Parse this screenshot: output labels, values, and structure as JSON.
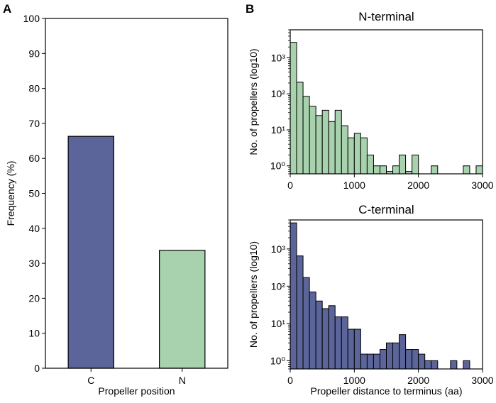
{
  "panel_labels": [
    "A",
    "B"
  ],
  "chart_data": [
    {
      "id": "A",
      "type": "bar",
      "title": "",
      "xlabel": "Propeller position",
      "ylabel": "Frequency (%)",
      "categories": [
        "C",
        "N"
      ],
      "values": [
        66.3,
        33.7
      ],
      "colors": [
        "#5b6599",
        "#a8d1ad"
      ],
      "ylim": [
        0,
        100
      ],
      "yticks": [
        0,
        10,
        20,
        30,
        40,
        50,
        60,
        70,
        80,
        90,
        100
      ]
    },
    {
      "id": "B-N",
      "type": "bar",
      "subtype": "histogram",
      "title": "N-terminal",
      "xlabel": "",
      "ylabel": "No. of propellers (log10)",
      "color": "#a8d1ad",
      "bin_width": 100,
      "xlim": [
        0,
        3000
      ],
      "xticks": [
        0,
        1000,
        2000,
        3000
      ],
      "yscale": "log",
      "ylim": [
        0.6,
        6000
      ],
      "yticks": [
        1,
        10,
        100,
        1000
      ],
      "ytick_labels": [
        "10⁰",
        "10¹",
        "10²",
        "10³"
      ],
      "bins": [
        {
          "start": 0,
          "count": 2700
        },
        {
          "start": 100,
          "count": 210
        },
        {
          "start": 200,
          "count": 85
        },
        {
          "start": 300,
          "count": 45
        },
        {
          "start": 400,
          "count": 25
        },
        {
          "start": 500,
          "count": 35
        },
        {
          "start": 600,
          "count": 17
        },
        {
          "start": 700,
          "count": 35
        },
        {
          "start": 800,
          "count": 13
        },
        {
          "start": 900,
          "count": 6
        },
        {
          "start": 1000,
          "count": 8
        },
        {
          "start": 1100,
          "count": 6
        },
        {
          "start": 1200,
          "count": 2
        },
        {
          "start": 1300,
          "count": 1
        },
        {
          "start": 1400,
          "count": 1
        },
        {
          "start": 1500,
          "count": 0.7
        },
        {
          "start": 1600,
          "count": 1
        },
        {
          "start": 1700,
          "count": 2
        },
        {
          "start": 1800,
          "count": 0.7
        },
        {
          "start": 1900,
          "count": 2
        },
        {
          "start": 2200,
          "count": 1
        },
        {
          "start": 2700,
          "count": 1
        },
        {
          "start": 2900,
          "count": 1
        }
      ]
    },
    {
      "id": "B-C",
      "type": "bar",
      "subtype": "histogram",
      "title": "C-terminal",
      "xlabel": "Propeller distance to terminus (aa)",
      "ylabel": "No. of propellers (log10)",
      "color": "#5b6599",
      "bin_width": 100,
      "xlim": [
        0,
        3000
      ],
      "xticks": [
        0,
        1000,
        2000,
        3000
      ],
      "yscale": "log",
      "ylim": [
        0.6,
        6000
      ],
      "yticks": [
        1,
        10,
        100,
        1000
      ],
      "ytick_labels": [
        "10⁰",
        "10¹",
        "10²",
        "10³"
      ],
      "bins": [
        {
          "start": 0,
          "count": 5000
        },
        {
          "start": 100,
          "count": 650
        },
        {
          "start": 200,
          "count": 170
        },
        {
          "start": 300,
          "count": 70
        },
        {
          "start": 400,
          "count": 40
        },
        {
          "start": 500,
          "count": 25
        },
        {
          "start": 600,
          "count": 30
        },
        {
          "start": 700,
          "count": 15
        },
        {
          "start": 800,
          "count": 15
        },
        {
          "start": 900,
          "count": 7
        },
        {
          "start": 1000,
          "count": 7
        },
        {
          "start": 1100,
          "count": 1.5
        },
        {
          "start": 1200,
          "count": 1.5
        },
        {
          "start": 1300,
          "count": 1.5
        },
        {
          "start": 1400,
          "count": 2
        },
        {
          "start": 1500,
          "count": 3
        },
        {
          "start": 1600,
          "count": 3
        },
        {
          "start": 1700,
          "count": 5
        },
        {
          "start": 1800,
          "count": 2
        },
        {
          "start": 1900,
          "count": 2
        },
        {
          "start": 2000,
          "count": 1.5
        },
        {
          "start": 2100,
          "count": 1
        },
        {
          "start": 2200,
          "count": 1
        },
        {
          "start": 2500,
          "count": 1
        },
        {
          "start": 2700,
          "count": 1
        }
      ]
    }
  ]
}
